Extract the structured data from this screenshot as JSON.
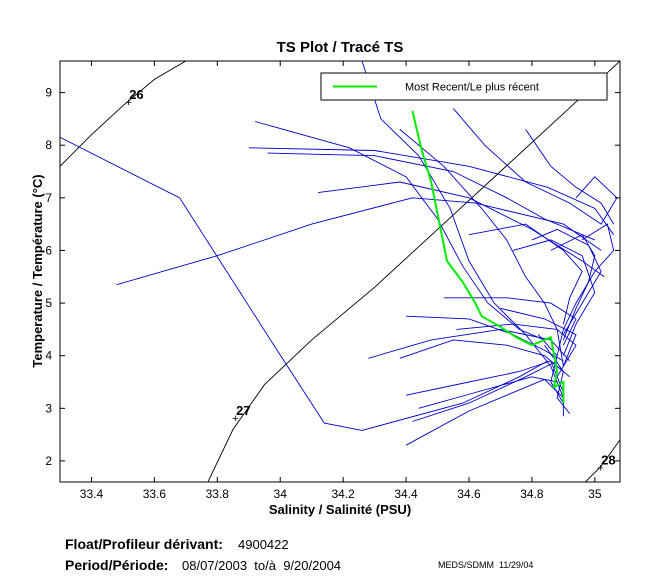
{
  "chart_data": {
    "type": "line",
    "title": "TS Plot / Tracé TS",
    "xlabel": "Salinity / Salinité (PSU)",
    "ylabel": "Temperature / Température (°C)",
    "xlim": [
      33.3,
      35.08
    ],
    "ylim": [
      1.6,
      9.6
    ],
    "x_ticks": [
      33.4,
      33.6,
      33.8,
      34,
      34.2,
      34.4,
      34.6,
      34.8,
      35
    ],
    "x_tick_labels": [
      "33.4",
      "33.6",
      "33.8",
      "34",
      "34.2",
      "34.4",
      "34.6",
      "34.8",
      "35"
    ],
    "y_ticks": [
      2,
      3,
      4,
      5,
      6,
      7,
      8,
      9
    ],
    "y_tick_labels": [
      "2",
      "3",
      "4",
      "5",
      "6",
      "7",
      "8",
      "9"
    ],
    "legend": {
      "label": "Most Recent/Le plus récent",
      "color": "#00ee00",
      "position": "top-right"
    },
    "isopycnals": [
      {
        "label": "26",
        "label_at": [
          33.52,
          8.82
        ],
        "points": [
          [
            33.3,
            7.6
          ],
          [
            33.4,
            8.2
          ],
          [
            33.5,
            8.75
          ],
          [
            33.6,
            9.25
          ],
          [
            33.7,
            9.6
          ]
        ]
      },
      {
        "label": "27",
        "label_at": [
          33.86,
          2.82
        ],
        "points": [
          [
            33.77,
            1.6
          ],
          [
            33.85,
            2.6
          ],
          [
            33.95,
            3.45
          ],
          [
            34.1,
            4.3
          ],
          [
            34.3,
            5.3
          ],
          [
            34.5,
            6.4
          ],
          [
            34.7,
            7.5
          ],
          [
            34.9,
            8.6
          ],
          [
            35.08,
            9.6
          ]
        ]
      },
      {
        "label": "28",
        "label_at": [
          35.02,
          1.88
        ],
        "points": [
          [
            34.97,
            1.6
          ],
          [
            35.02,
            1.9
          ],
          [
            35.08,
            2.4
          ]
        ]
      }
    ],
    "series": [
      {
        "name": "profiles",
        "color": "#0000cc",
        "points_list": [
          [
            [
              33.3,
              8.15
            ],
            [
              33.68,
              7.0
            ],
            [
              33.98,
              4.2
            ],
            [
              34.14,
              2.72
            ],
            [
              34.26,
              2.58
            ],
            [
              34.58,
              3.1
            ],
            [
              34.76,
              3.6
            ],
            [
              34.85,
              3.9
            ]
          ],
          [
            [
              33.48,
              5.35
            ],
            [
              33.8,
              5.9
            ],
            [
              34.1,
              6.5
            ],
            [
              34.42,
              7.0
            ],
            [
              34.62,
              6.9
            ],
            [
              34.9,
              6.5
            ],
            [
              35.02,
              6.0
            ]
          ],
          [
            [
              33.9,
              7.95
            ],
            [
              34.3,
              7.9
            ],
            [
              34.6,
              7.6
            ],
            [
              34.85,
              7.2
            ],
            [
              35.0,
              6.8
            ],
            [
              35.06,
              6.3
            ]
          ],
          [
            [
              33.96,
              7.85
            ],
            [
              34.3,
              7.8
            ],
            [
              34.55,
              7.5
            ],
            [
              34.72,
              7.0
            ],
            [
              34.84,
              6.6
            ],
            [
              35.0,
              6.2
            ]
          ],
          [
            [
              33.92,
              8.45
            ],
            [
              34.22,
              7.95
            ],
            [
              34.4,
              7.4
            ],
            [
              34.5,
              6.6
            ],
            [
              34.58,
              5.7
            ],
            [
              34.66,
              5.0
            ],
            [
              34.76,
              4.5
            ],
            [
              34.84,
              4.3
            ]
          ],
          [
            [
              34.12,
              7.1
            ],
            [
              34.38,
              7.3
            ],
            [
              34.6,
              7.0
            ],
            [
              34.8,
              6.4
            ],
            [
              34.96,
              5.8
            ],
            [
              35.03,
              5.5
            ]
          ],
          [
            [
              34.26,
              9.6
            ],
            [
              34.32,
              8.5
            ],
            [
              34.44,
              7.8
            ],
            [
              34.54,
              6.8
            ],
            [
              34.6,
              5.8
            ],
            [
              34.68,
              5.0
            ],
            [
              34.78,
              4.4
            ],
            [
              34.86,
              3.8
            ],
            [
              34.9,
              3.2
            ]
          ],
          [
            [
              34.38,
              8.3
            ],
            [
              34.52,
              7.6
            ],
            [
              34.64,
              6.8
            ],
            [
              34.72,
              6.2
            ],
            [
              34.78,
              5.5
            ],
            [
              34.84,
              5.0
            ],
            [
              34.88,
              4.5
            ],
            [
              34.9,
              3.8
            ]
          ],
          [
            [
              34.4,
              4.75
            ],
            [
              34.6,
              4.7
            ],
            [
              34.74,
              4.4
            ],
            [
              34.84,
              4.1
            ],
            [
              34.9,
              3.9
            ]
          ],
          [
            [
              34.38,
              3.95
            ],
            [
              34.55,
              4.3
            ],
            [
              34.72,
              4.2
            ],
            [
              34.84,
              4.0
            ],
            [
              34.9,
              3.7
            ]
          ],
          [
            [
              34.4,
              3.25
            ],
            [
              34.6,
              3.5
            ],
            [
              34.76,
              3.7
            ],
            [
              34.86,
              3.9
            ],
            [
              34.92,
              3.6
            ]
          ],
          [
            [
              34.44,
              3.0
            ],
            [
              34.62,
              3.3
            ],
            [
              34.8,
              3.6
            ],
            [
              34.88,
              3.5
            ]
          ],
          [
            [
              34.42,
              2.75
            ],
            [
              34.6,
              3.1
            ],
            [
              34.78,
              3.6
            ],
            [
              34.88,
              3.9
            ]
          ],
          [
            [
              34.55,
              8.7
            ],
            [
              34.65,
              8.0
            ],
            [
              34.78,
              7.3
            ],
            [
              34.92,
              6.9
            ],
            [
              35.02,
              6.5
            ],
            [
              35.07,
              7.0
            ],
            [
              35.0,
              7.4
            ],
            [
              34.94,
              7.0
            ]
          ],
          [
            [
              34.78,
              8.3
            ],
            [
              34.86,
              7.6
            ],
            [
              34.94,
              7.2
            ],
            [
              35.02,
              6.9
            ],
            [
              35.06,
              6.5
            ]
          ],
          [
            [
              34.96,
              6.2
            ],
            [
              35.04,
              6.5
            ],
            [
              35.06,
              6.0
            ],
            [
              35.0,
              5.6
            ],
            [
              34.94,
              5.0
            ],
            [
              34.9,
              4.5
            ],
            [
              34.88,
              4.0
            ]
          ],
          [
            [
              34.86,
              6.0
            ],
            [
              34.96,
              6.3
            ],
            [
              35.0,
              5.9
            ],
            [
              34.98,
              5.4
            ],
            [
              34.94,
              4.9
            ],
            [
              34.9,
              4.3
            ]
          ],
          [
            [
              34.8,
              6.2
            ],
            [
              34.88,
              6.4
            ],
            [
              34.98,
              6.1
            ],
            [
              35.02,
              5.6
            ],
            [
              34.96,
              5.0
            ],
            [
              34.9,
              4.4
            ]
          ],
          [
            [
              34.52,
              5.1
            ],
            [
              34.72,
              5.1
            ],
            [
              34.86,
              5.0
            ],
            [
              34.94,
              4.7
            ],
            [
              34.9,
              4.2
            ]
          ],
          [
            [
              34.7,
              4.9
            ],
            [
              34.84,
              4.7
            ],
            [
              34.94,
              4.4
            ],
            [
              34.9,
              3.8
            ]
          ],
          [
            [
              34.56,
              4.5
            ],
            [
              34.74,
              4.6
            ],
            [
              34.88,
              4.5
            ],
            [
              34.94,
              4.2
            ],
            [
              34.88,
              3.6
            ]
          ],
          [
            [
              34.28,
              3.95
            ],
            [
              34.48,
              4.3
            ],
            [
              34.7,
              4.5
            ],
            [
              34.86,
              4.3
            ],
            [
              34.92,
              3.9
            ]
          ],
          [
            [
              34.4,
              2.3
            ],
            [
              34.6,
              2.95
            ],
            [
              34.76,
              3.35
            ],
            [
              34.84,
              3.55
            ],
            [
              34.9,
              3.2
            ]
          ],
          [
            [
              34.84,
              4.2
            ],
            [
              34.9,
              3.7
            ],
            [
              34.88,
              3.2
            ],
            [
              34.92,
              2.9
            ]
          ],
          [
            [
              34.86,
              3.9
            ],
            [
              34.9,
              3.3
            ],
            [
              34.9,
              2.85
            ]
          ],
          [
            [
              34.82,
              4.4
            ],
            [
              34.88,
              4.0
            ],
            [
              34.86,
              3.5
            ],
            [
              34.9,
              3.1
            ]
          ],
          [
            [
              34.6,
              6.3
            ],
            [
              34.78,
              6.5
            ],
            [
              34.9,
              6.0
            ],
            [
              34.96,
              5.6
            ],
            [
              34.92,
              5.1
            ],
            [
              34.9,
              4.6
            ]
          ],
          [
            [
              34.74,
              6.0
            ],
            [
              34.86,
              6.2
            ],
            [
              34.96,
              5.9
            ],
            [
              35.0,
              5.2
            ],
            [
              34.94,
              4.6
            ],
            [
              34.9,
              4.0
            ]
          ]
        ]
      },
      {
        "name": "Most Recent/Le plus récent",
        "color": "#00ee00",
        "points": [
          [
            34.42,
            8.65
          ],
          [
            34.45,
            7.9
          ],
          [
            34.48,
            7.3
          ],
          [
            34.5,
            6.7
          ],
          [
            34.53,
            5.8
          ],
          [
            34.58,
            5.4
          ],
          [
            34.62,
            5.0
          ],
          [
            34.64,
            4.75
          ],
          [
            34.7,
            4.55
          ],
          [
            34.75,
            4.35
          ],
          [
            34.8,
            4.2
          ],
          [
            34.86,
            4.35
          ],
          [
            34.88,
            3.7
          ],
          [
            34.87,
            3.4
          ],
          [
            34.9,
            3.5
          ],
          [
            34.9,
            3.1
          ]
        ]
      }
    ]
  },
  "footer": {
    "float_label": "Float/Profileur dérivant:",
    "float_id": "4900422",
    "period_label": "Period/Période:",
    "period_value": "08/07/2003  to/à  9/20/2004",
    "credit": "MEDS/SDMM  11/29/04"
  }
}
